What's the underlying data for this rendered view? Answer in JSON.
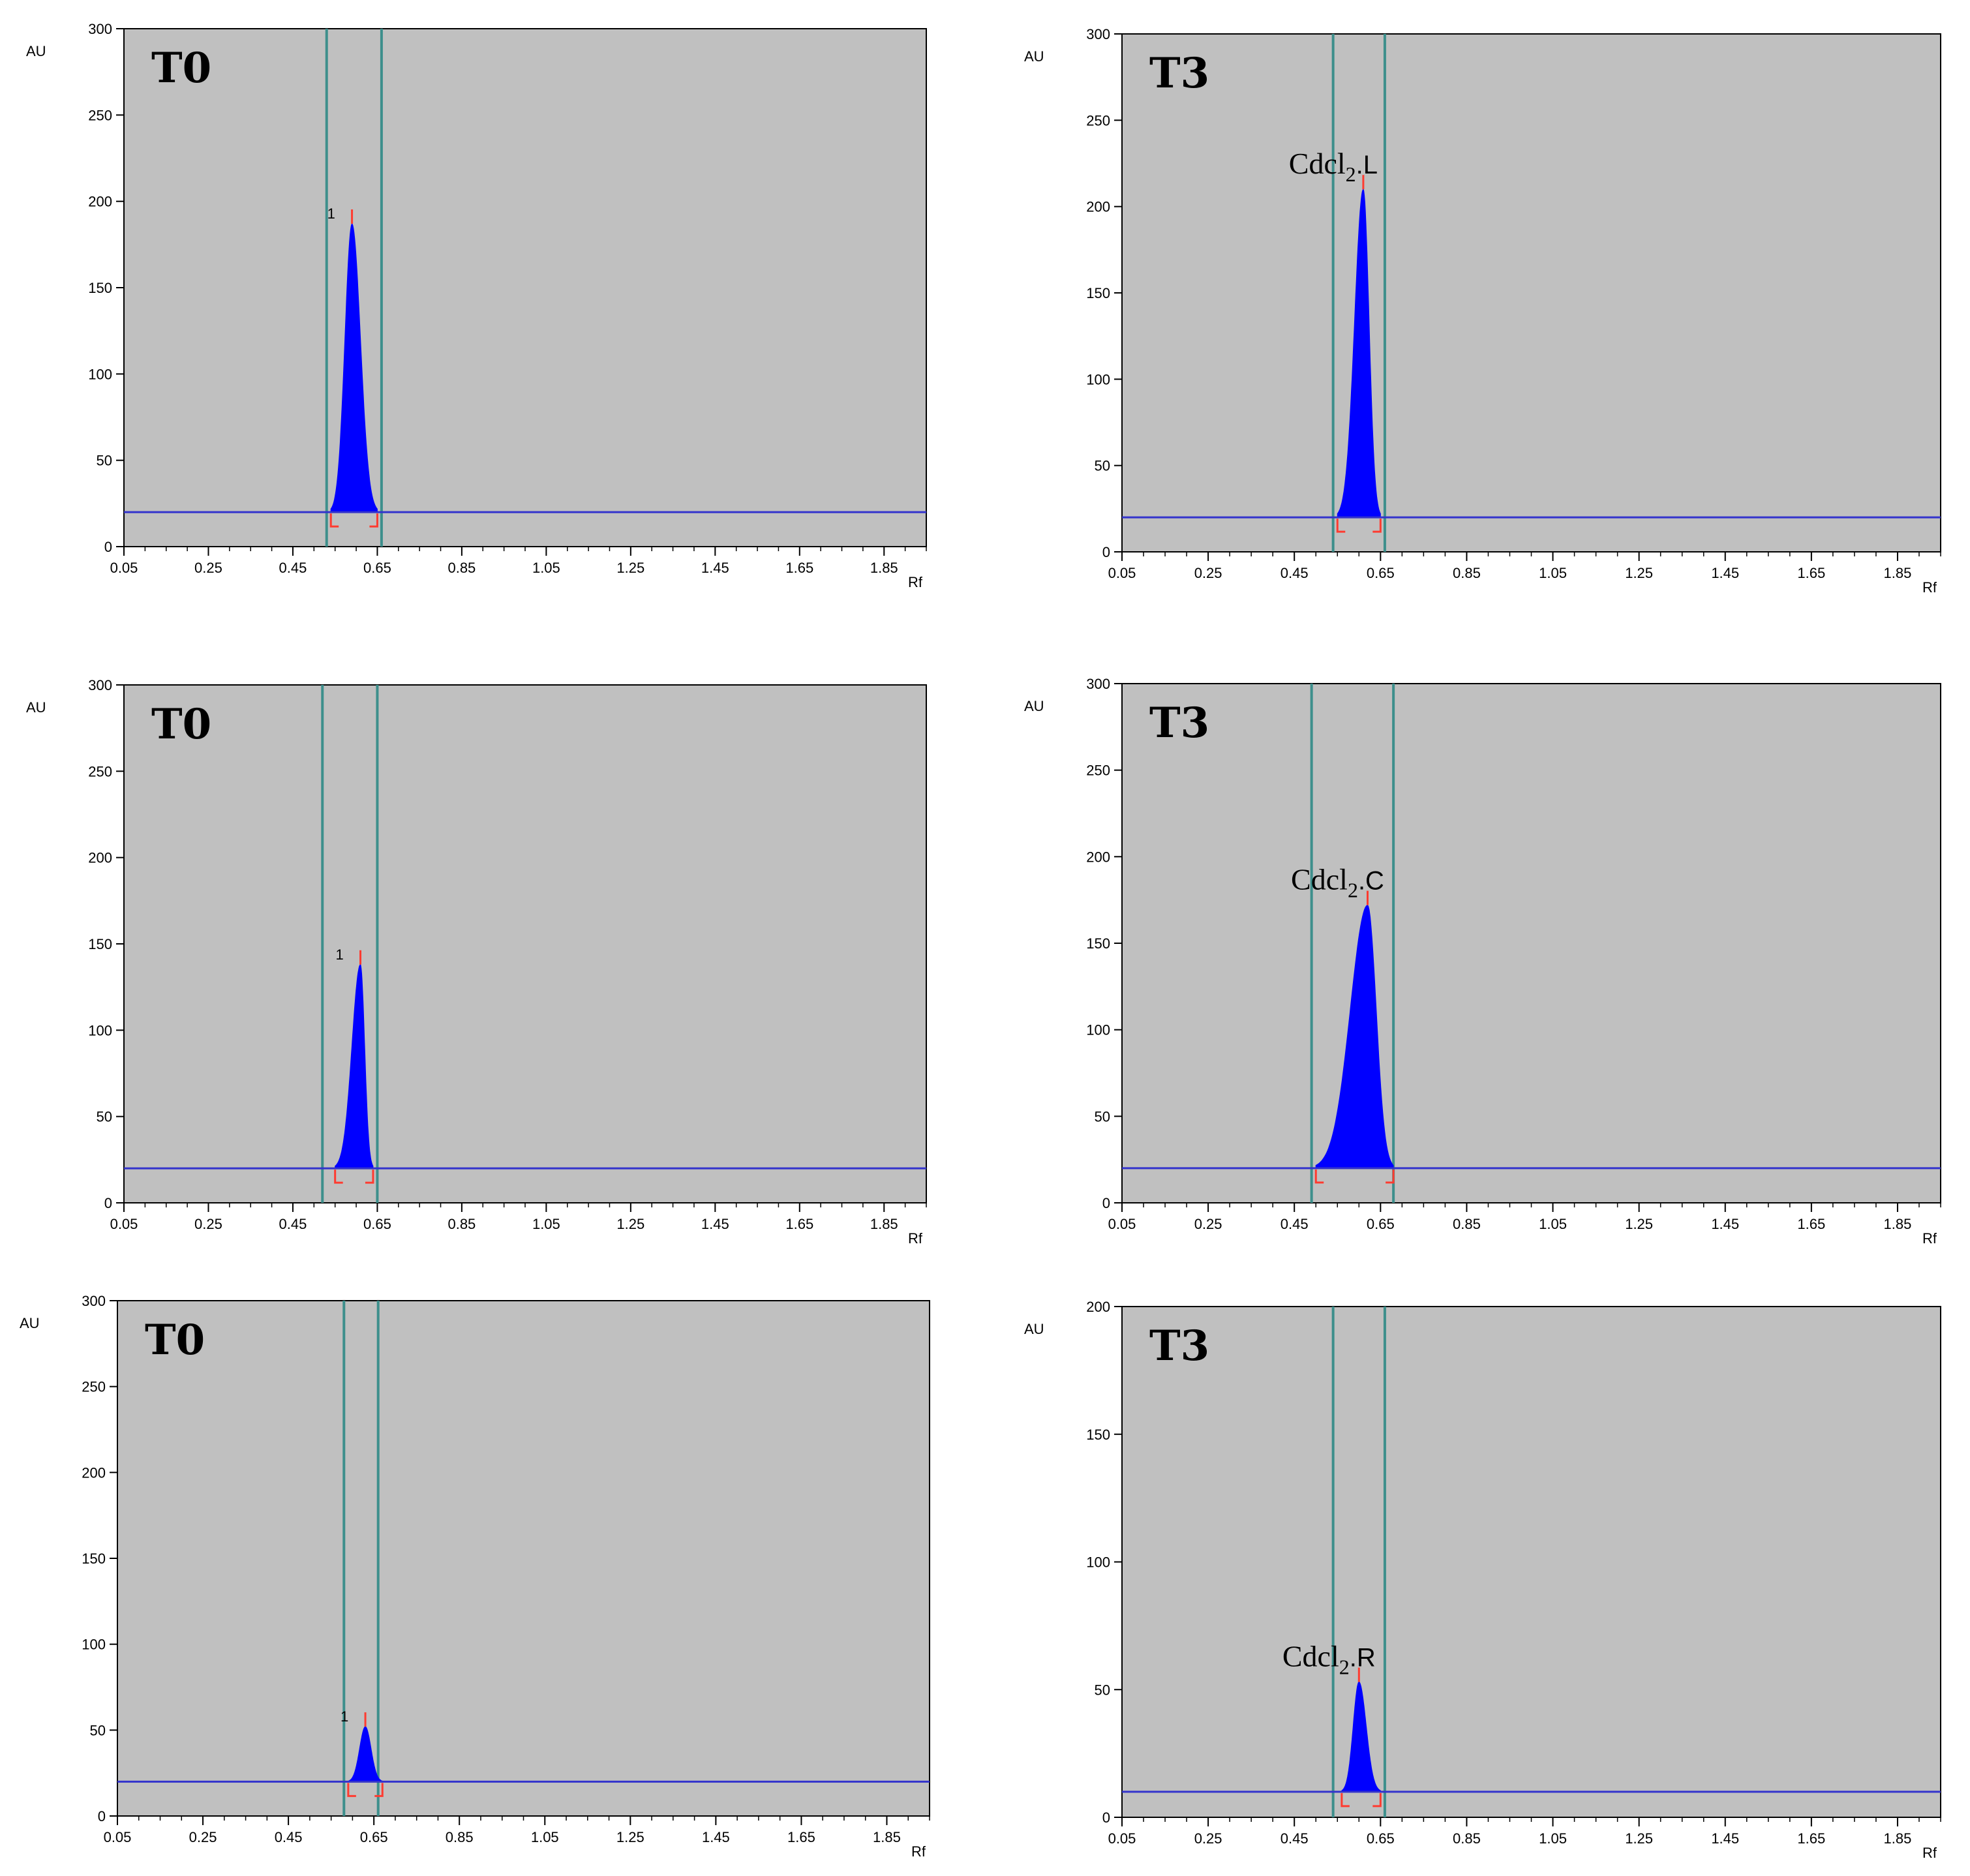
{
  "chart_data": [
    {
      "type": "area",
      "title": "T0",
      "xlabel": "Rf",
      "ylabel": "AU",
      "xlim": [
        0.05,
        1.95
      ],
      "ylim": [
        0,
        300
      ],
      "xticks": [
        "0.05",
        "0.25",
        "0.45",
        "0.65",
        "0.85",
        "1.05",
        "1.25",
        "1.45",
        "1.65",
        "1.85"
      ],
      "yticks": [
        "0",
        "50",
        "100",
        "150",
        "200",
        "250",
        "300"
      ],
      "grid": false,
      "baseline": 20,
      "colors": {
        "plot_bg": "#c0c0c0",
        "peak": "#0000ff",
        "baseline": "#3333cc",
        "marker": "#3d8f8c",
        "bracket": "#ff3b30"
      },
      "markers": [
        0.53,
        0.66
      ],
      "peak": {
        "label": "1",
        "rf": 0.59,
        "height": 167,
        "left": 0.54,
        "right": 0.65
      },
      "bracket": [
        0.54,
        0.65
      ]
    },
    {
      "type": "area",
      "title": "T3",
      "xlabel": "Rf",
      "ylabel": "AU",
      "xlim": [
        0.05,
        1.95
      ],
      "ylim": [
        0,
        300
      ],
      "xticks": [
        "0.05",
        "0.25",
        "0.45",
        "0.65",
        "0.85",
        "1.05",
        "1.25",
        "1.45",
        "1.65",
        "1.85"
      ],
      "yticks": [
        "0",
        "50",
        "100",
        "150",
        "200",
        "250",
        "300"
      ],
      "grid": false,
      "baseline": 20,
      "colors": {
        "plot_bg": "#c0c0c0",
        "peak": "#0000ff",
        "baseline": "#3333cc",
        "marker": "#3d8f8c",
        "bracket": "#ff3b30"
      },
      "markers": [
        0.54,
        0.66
      ],
      "peak": {
        "label": "Cdcl",
        "label_sub": "2",
        "label_suffix": ".L",
        "rf": 0.61,
        "height": 190,
        "left": 0.55,
        "right": 0.65
      },
      "bracket": [
        0.55,
        0.65
      ]
    },
    {
      "type": "area",
      "title": "T0",
      "xlabel": "Rf",
      "ylabel": "AU",
      "xlim": [
        0.05,
        1.95
      ],
      "ylim": [
        0,
        300
      ],
      "xticks": [
        "0.05",
        "0.25",
        "0.45",
        "0.65",
        "0.85",
        "1.05",
        "1.25",
        "1.45",
        "1.65",
        "1.85"
      ],
      "yticks": [
        "0",
        "50",
        "100",
        "150",
        "200",
        "250",
        "300"
      ],
      "grid": false,
      "baseline": 20,
      "colors": {
        "plot_bg": "#c0c0c0",
        "peak": "#0000ff",
        "baseline": "#3333cc",
        "marker": "#3d8f8c",
        "bracket": "#ff3b30"
      },
      "markers": [
        0.52,
        0.65
      ],
      "peak": {
        "label": "1",
        "rf": 0.61,
        "height": 118,
        "left": 0.55,
        "right": 0.64
      },
      "bracket": [
        0.55,
        0.64
      ]
    },
    {
      "type": "area",
      "title": "T3",
      "xlabel": "Rf",
      "ylabel": "AU",
      "xlim": [
        0.05,
        1.95
      ],
      "ylim": [
        0,
        300
      ],
      "xticks": [
        "0.05",
        "0.25",
        "0.45",
        "0.65",
        "0.85",
        "1.05",
        "1.25",
        "1.45",
        "1.65",
        "1.85"
      ],
      "yticks": [
        "0",
        "50",
        "100",
        "150",
        "200",
        "250",
        "300"
      ],
      "grid": false,
      "baseline": 20,
      "colors": {
        "plot_bg": "#c0c0c0",
        "peak": "#0000ff",
        "baseline": "#3333cc",
        "marker": "#3d8f8c",
        "bracket": "#ff3b30"
      },
      "markers": [
        0.49,
        0.68
      ],
      "peak": {
        "label": "Cdcl",
        "label_sub": "2",
        "label_suffix": ".C",
        "rf": 0.62,
        "height": 152,
        "left": 0.5,
        "right": 0.68,
        "tail_left": true
      },
      "bracket": [
        0.5,
        0.68
      ]
    },
    {
      "type": "area",
      "title": "T0",
      "xlabel": "Rf",
      "ylabel": "AU",
      "xlim": [
        0.05,
        1.95
      ],
      "ylim": [
        0,
        300
      ],
      "xticks": [
        "0.05",
        "0.25",
        "0.45",
        "0.65",
        "0.85",
        "1.05",
        "1.25",
        "1.45",
        "1.65",
        "1.85"
      ],
      "yticks": [
        "0",
        "50",
        "100",
        "150",
        "200",
        "250",
        "300"
      ],
      "grid": false,
      "baseline": 20,
      "colors": {
        "plot_bg": "#c0c0c0",
        "peak": "#0000ff",
        "baseline": "#3333cc",
        "marker": "#3d8f8c",
        "bracket": "#ff3b30"
      },
      "markers": [
        0.58,
        0.66
      ],
      "peak": {
        "label": "1",
        "rf": 0.63,
        "height": 32,
        "left": 0.59,
        "right": 0.67
      },
      "bracket": [
        0.59,
        0.67
      ]
    },
    {
      "type": "area",
      "title": "T3",
      "xlabel": "Rf",
      "ylabel": "AU",
      "xlim": [
        0.05,
        1.95
      ],
      "ylim": [
        0,
        200
      ],
      "xticks": [
        "0.05",
        "0.25",
        "0.45",
        "0.65",
        "0.85",
        "1.05",
        "1.25",
        "1.45",
        "1.65",
        "1.85"
      ],
      "yticks": [
        "0",
        "50",
        "100",
        "150",
        "200"
      ],
      "grid": false,
      "baseline": 10,
      "colors": {
        "plot_bg": "#c0c0c0",
        "peak": "#0000ff",
        "baseline": "#3333cc",
        "marker": "#3d8f8c",
        "bracket": "#ff3b30"
      },
      "markers": [
        0.54,
        0.66
      ],
      "peak": {
        "label": "Cdcl",
        "label_sub": "2",
        "label_suffix": ".R",
        "rf": 0.6,
        "height": 43,
        "left": 0.56,
        "right": 0.65
      },
      "bracket": [
        0.56,
        0.65
      ]
    }
  ]
}
